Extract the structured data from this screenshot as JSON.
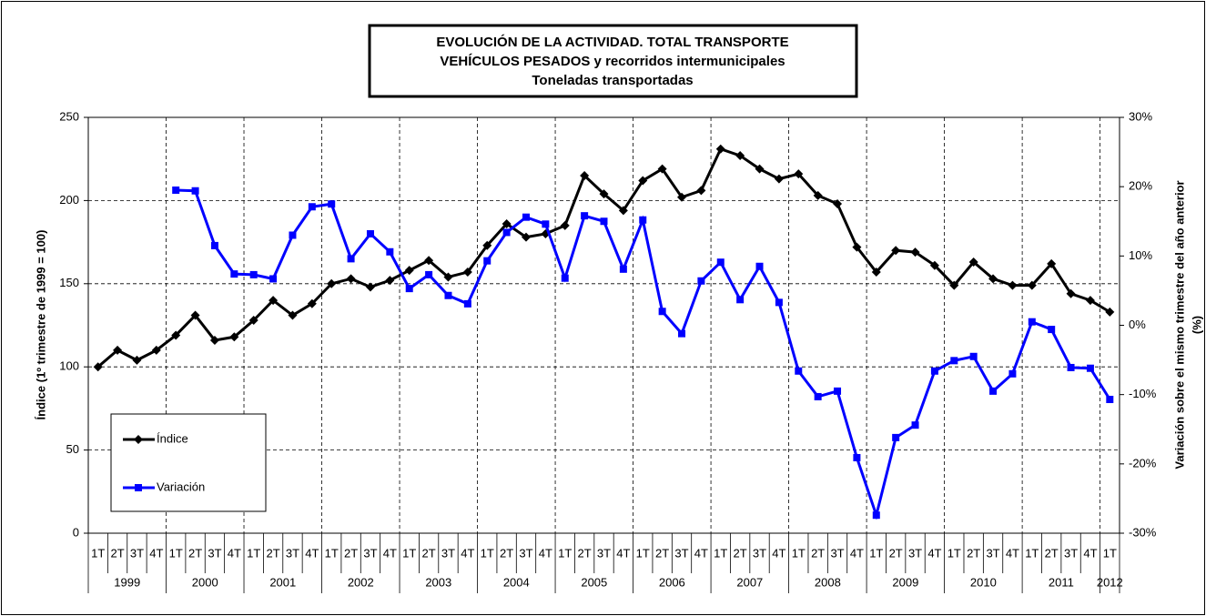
{
  "chart_data": {
    "type": "line",
    "title": [
      "EVOLUCIÓN DE LA ACTIVIDAD. TOTAL TRANSPORTE",
      "VEHÍCULOS PESADOS y recorridos intermunicipales",
      "Toneladas transportadas"
    ],
    "ylabel": "Índice (1º trimestre de 1999 = 100)",
    "y2label": [
      "Variación sobre el mismo trimestre del año anterior",
      "(%)"
    ],
    "categories": [
      "1T",
      "2T",
      "3T",
      "4T",
      "1T",
      "2T",
      "3T",
      "4T",
      "1T",
      "2T",
      "3T",
      "4T",
      "1T",
      "2T",
      "3T",
      "4T",
      "1T",
      "2T",
      "3T",
      "4T",
      "1T",
      "2T",
      "3T",
      "4T",
      "1T",
      "2T",
      "3T",
      "4T",
      "1T",
      "2T",
      "3T",
      "4T",
      "1T",
      "2T",
      "3T",
      "4T",
      "1T",
      "2T",
      "3T",
      "4T",
      "1T",
      "2T",
      "3T",
      "4T",
      "1T",
      "2T",
      "3T",
      "4T",
      "1T",
      "2T",
      "3T",
      "4T",
      "1T"
    ],
    "years": [
      "1999",
      "2000",
      "2001",
      "2002",
      "2003",
      "2004",
      "2005",
      "2006",
      "2007",
      "2008",
      "2009",
      "2010",
      "2011",
      "2012"
    ],
    "ylim": [
      0,
      250
    ],
    "yticks": [
      0,
      50,
      100,
      150,
      200,
      250
    ],
    "y2lim": [
      -30,
      30
    ],
    "y2ticks": [
      {
        "value": -30,
        "label": "-30%"
      },
      {
        "value": -20,
        "label": "-20%"
      },
      {
        "value": -10,
        "label": "-10%"
      },
      {
        "value": 0,
        "label": "0%"
      },
      {
        "value": 10,
        "label": "10%"
      },
      {
        "value": 20,
        "label": "20%"
      },
      {
        "value": 30,
        "label": "30%"
      }
    ],
    "grid": true,
    "series": [
      {
        "name": "Índice",
        "color": "#000000",
        "marker": "diamond",
        "values": [
          100,
          110,
          104,
          110,
          119,
          131,
          116,
          118,
          128,
          140,
          131,
          138,
          150,
          153,
          148,
          152,
          158,
          164,
          154,
          157,
          173,
          186,
          178,
          180,
          185,
          215,
          204,
          194,
          212,
          219,
          202,
          206,
          231,
          227,
          219,
          213,
          216,
          203,
          198,
          172,
          157,
          170,
          169,
          161,
          149,
          163,
          153,
          149,
          149,
          162,
          144,
          140,
          133
        ]
      },
      {
        "name": "Variación",
        "color": "#0000ff",
        "marker": "square",
        "axis": "y2",
        "values": [
          null,
          null,
          null,
          null,
          19.5,
          19.4,
          11.5,
          7.4,
          7.3,
          6.7,
          13,
          17.1,
          17.5,
          9.6,
          13.2,
          10.6,
          5.3,
          7.3,
          4.3,
          3.1,
          9.3,
          13.4,
          15.6,
          14.6,
          6.8,
          15.8,
          15,
          8.1,
          15.2,
          2,
          -1.2,
          6.4,
          9.1,
          3.7,
          8.5,
          3.3,
          -6.6,
          -10.3,
          -9.5,
          -19.1,
          -27.4,
          -16.2,
          -14.4,
          -6.6,
          -5.1,
          -4.5,
          -9.5,
          -7,
          0.5,
          -0.6,
          -6.1,
          -6.2,
          -10.7
        ]
      }
    ]
  }
}
